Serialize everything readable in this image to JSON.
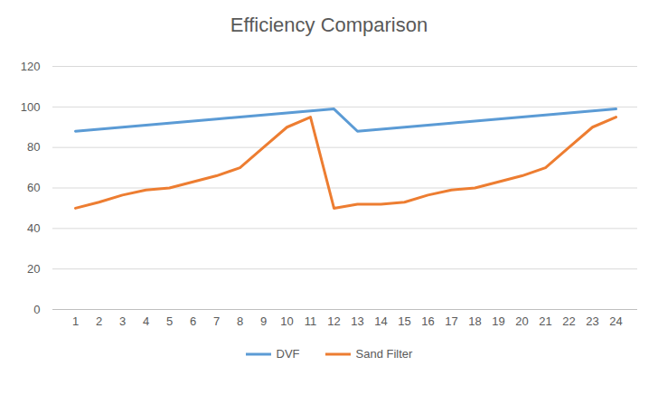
{
  "chart_data": {
    "type": "line",
    "title": "Efficiency Comparison",
    "categories": [
      "1",
      "2",
      "3",
      "4",
      "5",
      "6",
      "7",
      "8",
      "9",
      "10",
      "11",
      "12",
      "13",
      "14",
      "15",
      "16",
      "17",
      "18",
      "19",
      "20",
      "21",
      "22",
      "23",
      "24"
    ],
    "series": [
      {
        "name": "DVF",
        "color": "#5b9bd5",
        "values": [
          88,
          89,
          90,
          91,
          92,
          93,
          94,
          95,
          96,
          97,
          98,
          99,
          88,
          89,
          90,
          91,
          92,
          93,
          94,
          95,
          96,
          97,
          98,
          99
        ]
      },
      {
        "name": "Sand Filter",
        "color": "#ed7d31",
        "values": [
          50,
          53,
          56.5,
          59,
          60,
          63,
          66,
          70,
          80,
          90,
          95,
          50,
          52,
          52,
          53,
          56.5,
          59,
          60,
          63,
          66,
          70,
          80,
          90,
          95
        ]
      }
    ],
    "ylim": [
      0,
      120
    ],
    "yticks": [
      0,
      20,
      40,
      60,
      80,
      100,
      120
    ],
    "grid": true,
    "legend": "bottom"
  }
}
